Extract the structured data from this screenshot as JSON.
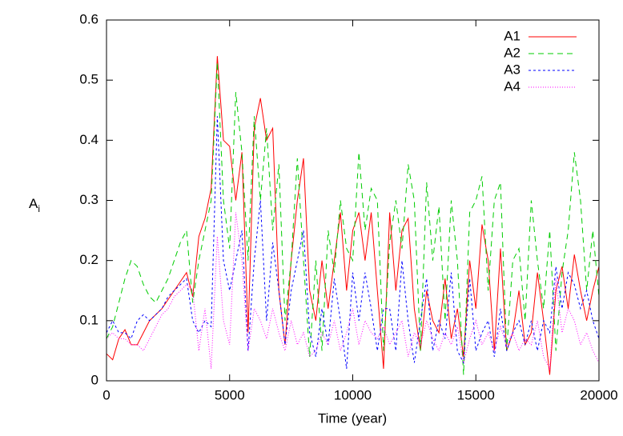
{
  "chart_data": {
    "type": "line",
    "x_label": "Time (year)",
    "y_label": {
      "main": "A",
      "subscript": "i"
    },
    "xlim": [
      0,
      20000
    ],
    "ylim": [
      0,
      0.6
    ],
    "xticks": [
      0,
      5000,
      10000,
      15000,
      20000
    ],
    "yticks": [
      0,
      0.1,
      0.2,
      0.3,
      0.4,
      0.5,
      0.6
    ],
    "grid": false,
    "legend": "top-right",
    "x": [
      0,
      250,
      500,
      750,
      1000,
      1250,
      1500,
      1750,
      2000,
      2250,
      2500,
      2750,
      3000,
      3250,
      3500,
      3750,
      4000,
      4250,
      4500,
      4750,
      5000,
      5250,
      5500,
      5750,
      6000,
      6250,
      6500,
      6750,
      7000,
      7250,
      7500,
      7750,
      8000,
      8250,
      8500,
      8750,
      9000,
      9250,
      9500,
      9750,
      10000,
      10250,
      10500,
      10750,
      11000,
      11250,
      11500,
      11750,
      12000,
      12250,
      12500,
      12750,
      13000,
      13250,
      13500,
      13750,
      14000,
      14250,
      14500,
      14750,
      15000,
      15250,
      15500,
      15750,
      16000,
      16250,
      16500,
      16750,
      17000,
      17250,
      17500,
      17750,
      18000,
      18250,
      18500,
      18750,
      19000,
      19250,
      19500,
      19750,
      20000
    ],
    "series": [
      {
        "name": "A1",
        "color": "#ff0000",
        "dash": "none",
        "values": [
          0.045,
          0.035,
          0.07,
          0.085,
          0.06,
          0.06,
          0.08,
          0.1,
          0.11,
          0.12,
          0.135,
          0.15,
          0.165,
          0.18,
          0.14,
          0.24,
          0.27,
          0.32,
          0.54,
          0.4,
          0.39,
          0.3,
          0.38,
          0.08,
          0.42,
          0.47,
          0.4,
          0.42,
          0.15,
          0.06,
          0.2,
          0.3,
          0.37,
          0.15,
          0.1,
          0.2,
          0.12,
          0.2,
          0.28,
          0.15,
          0.25,
          0.28,
          0.2,
          0.28,
          0.15,
          0.02,
          0.28,
          0.15,
          0.25,
          0.27,
          0.12,
          0.05,
          0.15,
          0.1,
          0.08,
          0.17,
          0.07,
          0.12,
          0.04,
          0.2,
          0.12,
          0.26,
          0.2,
          0.05,
          0.22,
          0.05,
          0.08,
          0.15,
          0.06,
          0.08,
          0.18,
          0.1,
          0.01,
          0.15,
          0.19,
          0.12,
          0.21,
          0.15,
          0.1,
          0.15,
          0.19
        ]
      },
      {
        "name": "A2",
        "color": "#00cc00",
        "dash": "7 5",
        "values": [
          0.07,
          0.09,
          0.13,
          0.17,
          0.2,
          0.19,
          0.16,
          0.14,
          0.13,
          0.15,
          0.17,
          0.2,
          0.23,
          0.25,
          0.13,
          0.2,
          0.25,
          0.3,
          0.53,
          0.3,
          0.22,
          0.48,
          0.38,
          0.2,
          0.44,
          0.3,
          0.42,
          0.25,
          0.36,
          0.1,
          0.2,
          0.37,
          0.2,
          0.04,
          0.2,
          0.05,
          0.25,
          0.18,
          0.3,
          0.22,
          0.2,
          0.38,
          0.25,
          0.32,
          0.3,
          0.05,
          0.23,
          0.3,
          0.22,
          0.36,
          0.3,
          0.05,
          0.33,
          0.2,
          0.29,
          0.1,
          0.3,
          0.2,
          0.01,
          0.28,
          0.3,
          0.34,
          0.15,
          0.3,
          0.33,
          0.05,
          0.2,
          0.22,
          0.1,
          0.3,
          0.2,
          0.12,
          0.25,
          0.05,
          0.18,
          0.25,
          0.38,
          0.3,
          0.15,
          0.25,
          0.14
        ]
      },
      {
        "name": "A3",
        "color": "#0000ff",
        "dash": "3 3",
        "values": [
          0.08,
          0.1,
          0.08,
          0.08,
          0.07,
          0.1,
          0.11,
          0.1,
          0.11,
          0.12,
          0.14,
          0.15,
          0.16,
          0.17,
          0.1,
          0.08,
          0.1,
          0.09,
          0.44,
          0.2,
          0.15,
          0.2,
          0.25,
          0.05,
          0.2,
          0.3,
          0.1,
          0.23,
          0.15,
          0.06,
          0.15,
          0.2,
          0.25,
          0.08,
          0.04,
          0.12,
          0.06,
          0.17,
          0.1,
          0.02,
          0.18,
          0.1,
          0.18,
          0.12,
          0.05,
          0.12,
          0.12,
          0.05,
          0.2,
          0.1,
          0.03,
          0.1,
          0.17,
          0.05,
          0.1,
          0.07,
          0.18,
          0.05,
          0.03,
          0.17,
          0.05,
          0.08,
          0.1,
          0.04,
          0.12,
          0.05,
          0.08,
          0.1,
          0.06,
          0.1,
          0.05,
          0.1,
          0.08,
          0.19,
          0.12,
          0.18,
          0.16,
          0.12,
          0.15,
          0.1,
          0.07
        ]
      },
      {
        "name": "A4",
        "color": "#ff00ff",
        "dash": "1 2",
        "values": [
          0.07,
          0.08,
          0.07,
          0.07,
          0.06,
          0.06,
          0.05,
          0.07,
          0.09,
          0.11,
          0.12,
          0.14,
          0.15,
          0.16,
          0.15,
          0.05,
          0.12,
          0.02,
          0.24,
          0.1,
          0.06,
          0.28,
          0.2,
          0.05,
          0.12,
          0.1,
          0.07,
          0.12,
          0.08,
          0.05,
          0.1,
          0.06,
          0.08,
          0.04,
          0.05,
          0.08,
          0.06,
          0.1,
          0.05,
          0.08,
          0.12,
          0.06,
          0.1,
          0.08,
          0.07,
          0.09,
          0.06,
          0.08,
          0.1,
          0.04,
          0.08,
          0.06,
          0.1,
          0.07,
          0.05,
          0.08,
          0.06,
          0.09,
          0.03,
          0.07,
          0.1,
          0.06,
          0.08,
          0.05,
          0.09,
          0.06,
          0.08,
          0.05,
          0.07,
          0.06,
          0.1,
          0.04,
          0.02,
          0.17,
          0.08,
          0.12,
          0.1,
          0.06,
          0.08,
          0.05,
          0.03
        ]
      }
    ]
  }
}
